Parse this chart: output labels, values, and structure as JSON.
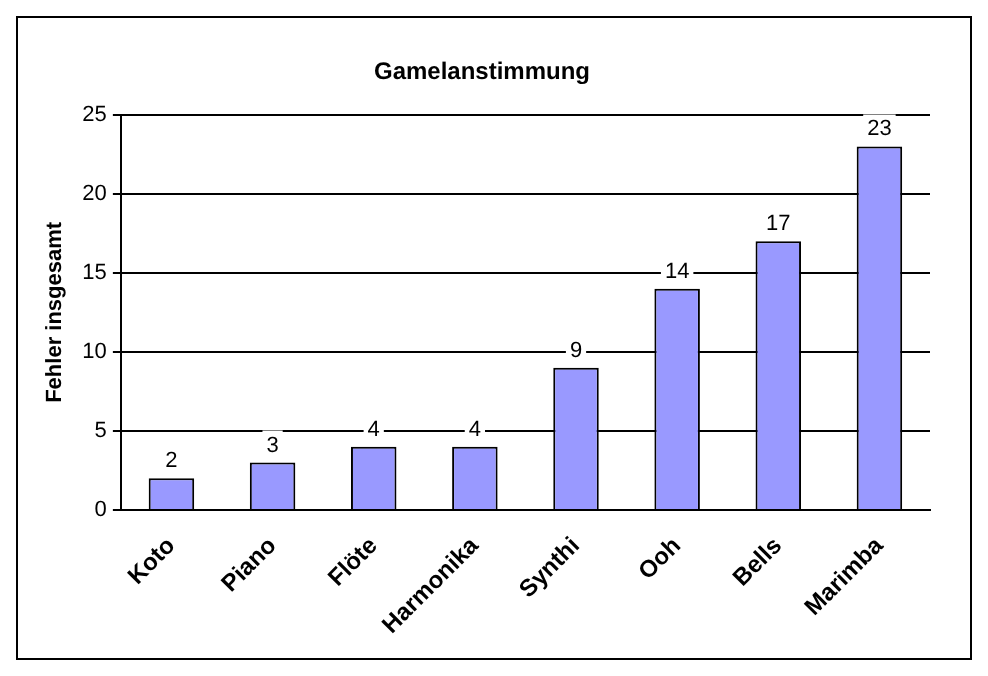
{
  "chart_data": {
    "type": "bar",
    "title": "Gamelanstimmung",
    "ylabel": "Fehler insgesamt",
    "categories": [
      "Koto",
      "Piano",
      "Flöte",
      "Harmonika",
      "Synthi",
      "Ooh",
      "Bells",
      "Marimba"
    ],
    "values": [
      2,
      3,
      4,
      4,
      9,
      14,
      17,
      23
    ],
    "color": "#9999ff",
    "ylim": [
      0,
      25
    ],
    "yticks": [
      0,
      5,
      10,
      15,
      20,
      25
    ],
    "grid": "y",
    "data_labels": true,
    "legend": false
  }
}
